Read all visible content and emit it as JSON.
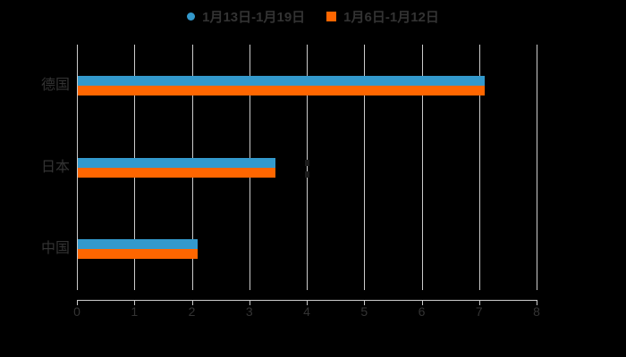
{
  "chart_data": {
    "type": "bar",
    "orientation": "horizontal",
    "title": "",
    "xlabel": "",
    "ylabel": "",
    "background_color": "#000000",
    "text_color": "#333333",
    "grid_color": "#cccccc",
    "grid": true,
    "legend_position": "top",
    "categories": [
      "德国",
      "日本",
      "中国"
    ],
    "series": [
      {
        "name": "1月13日-1月19日",
        "color": "#3399cc",
        "marker": "circle",
        "values": [
          7.1,
          3.45,
          2.1
        ]
      },
      {
        "name": "1月6日-1月12日",
        "color": "#ff6600",
        "marker": "square",
        "values": [
          7.1,
          3.45,
          2.1
        ]
      }
    ],
    "xlim": [
      0,
      8
    ],
    "x_ticks": [
      "0",
      "1",
      "2",
      "3",
      "4",
      "5",
      "6",
      "7",
      "8"
    ]
  },
  "artifacts": {
    "color": "#1b1b1b",
    "marks": [
      {
        "x_value": 4,
        "category_index": 1,
        "series_index": 0
      },
      {
        "x_value": 4,
        "category_index": 1,
        "series_index": 1
      }
    ]
  }
}
